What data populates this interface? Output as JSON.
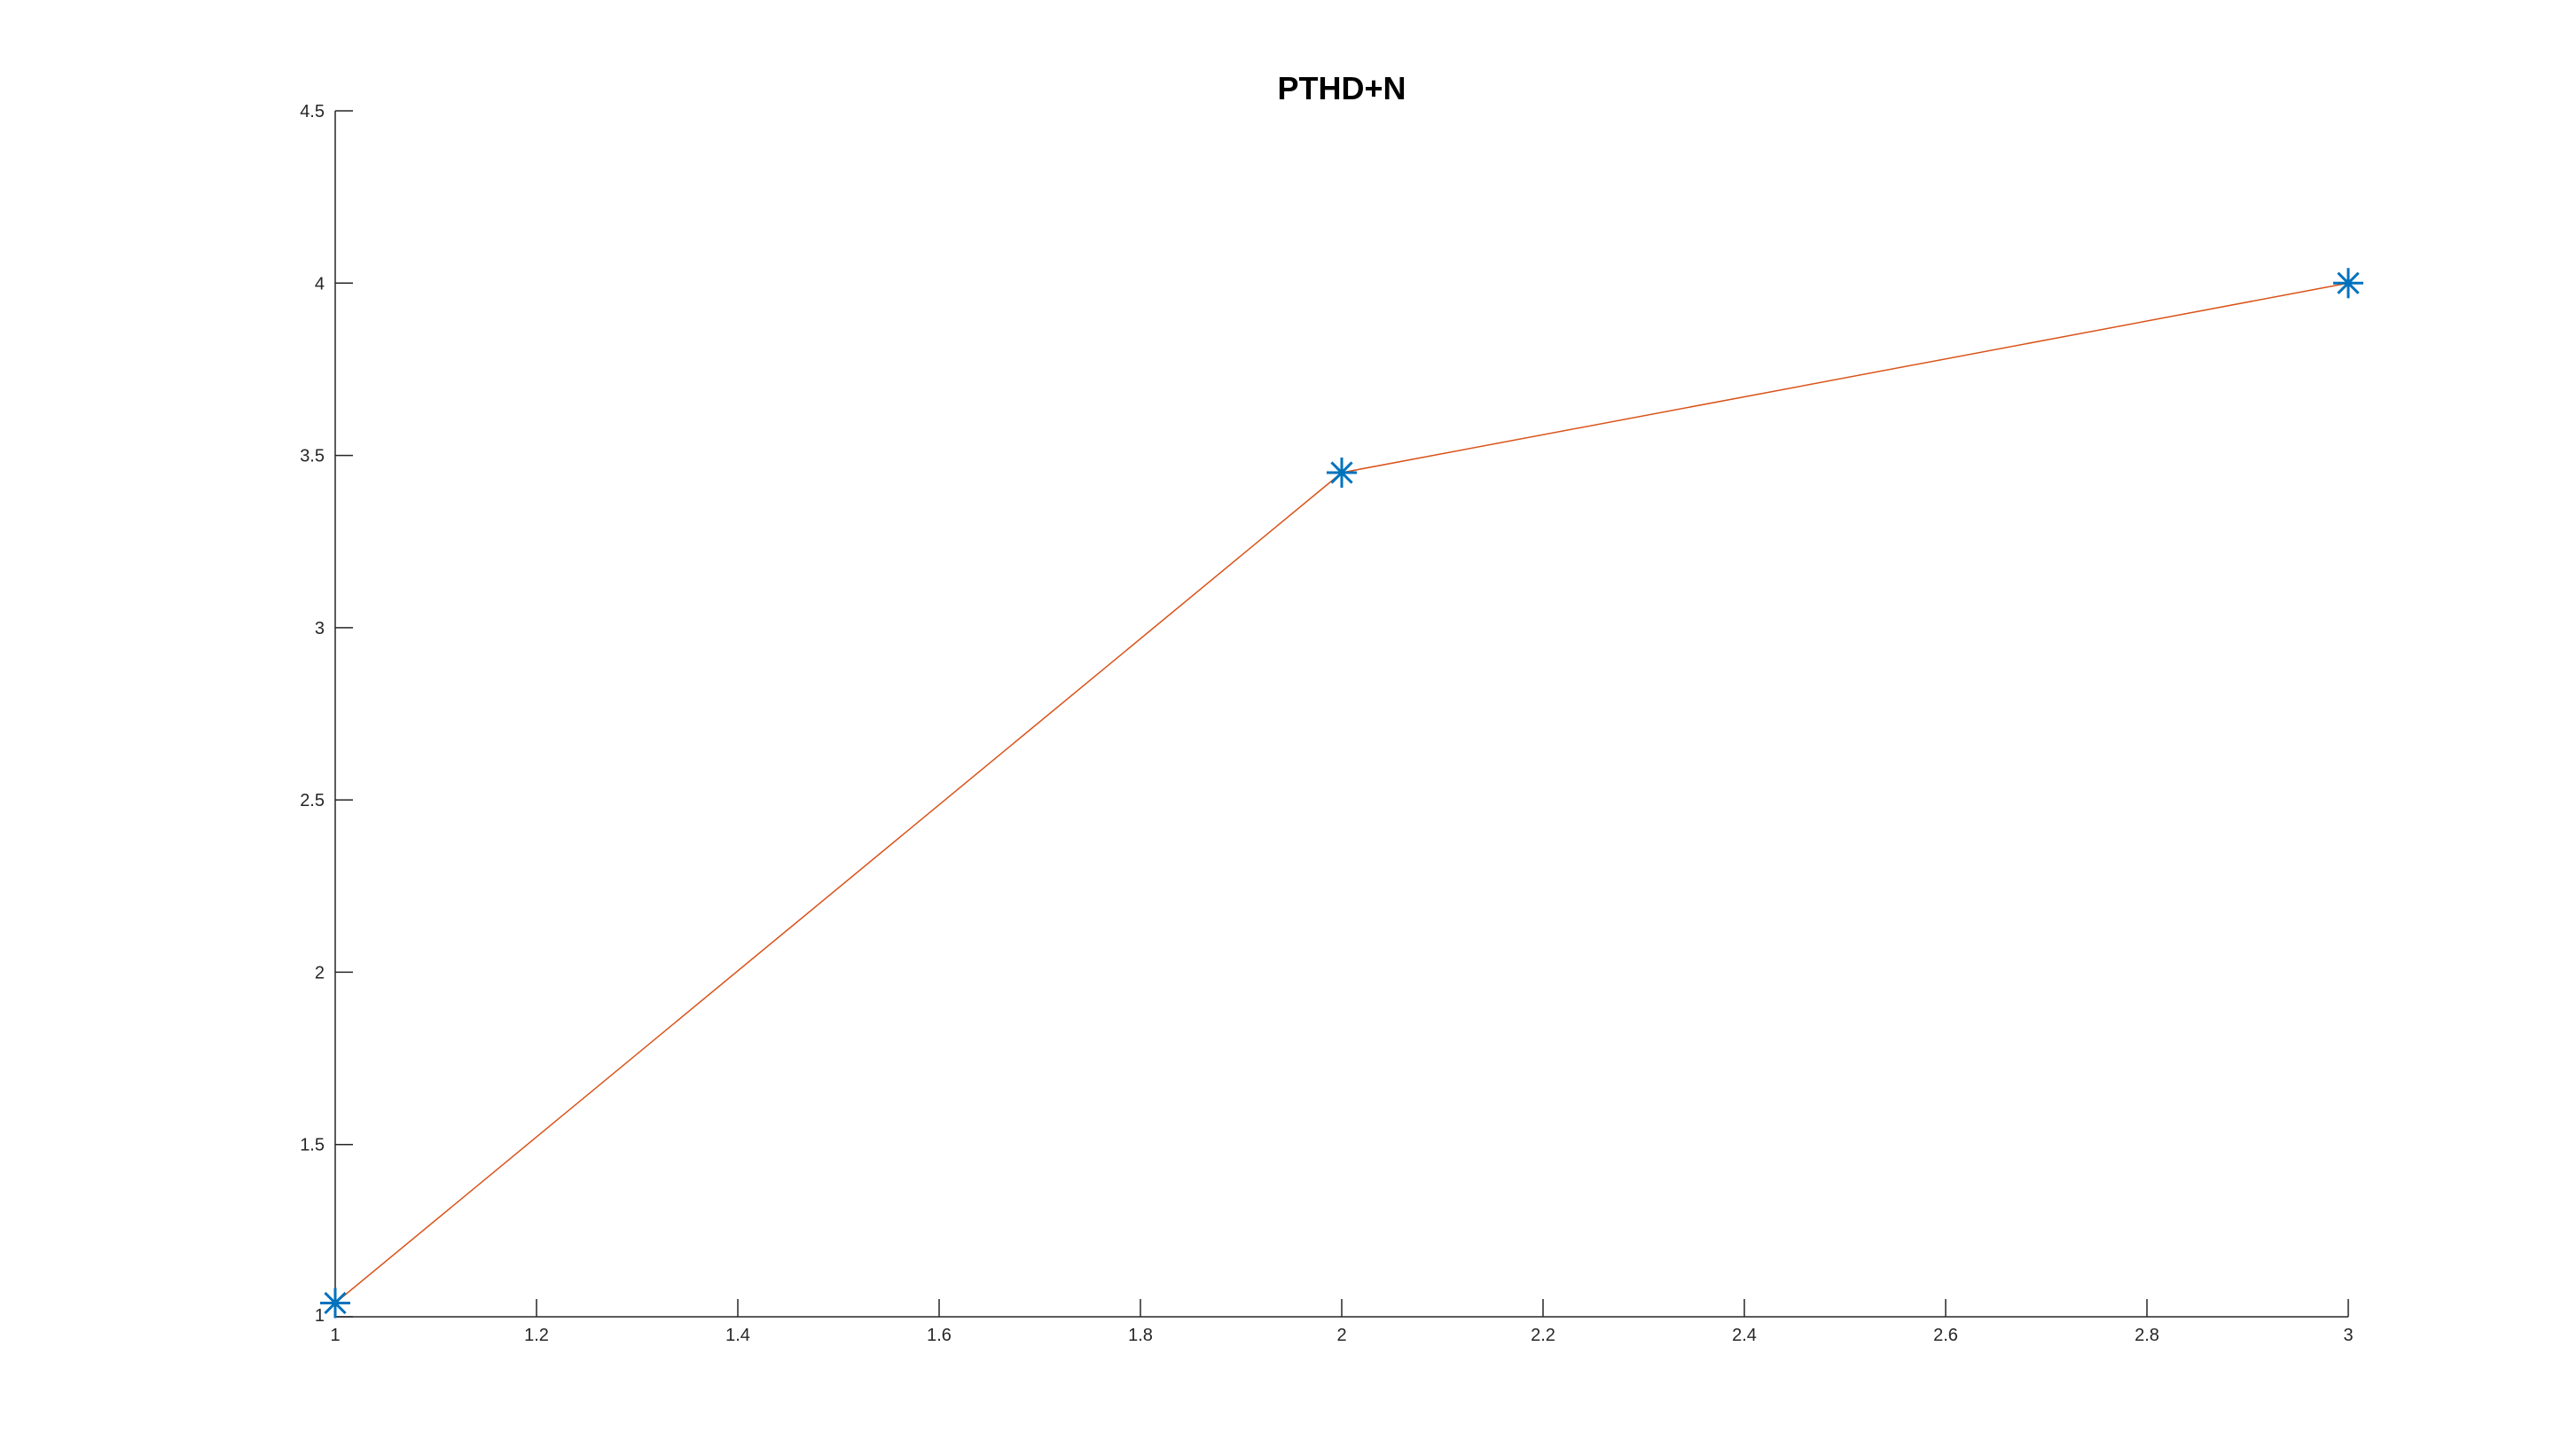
{
  "chart_data": {
    "type": "line",
    "title": "PTHD+N",
    "xlabel": "",
    "ylabel": "",
    "xlim": [
      1,
      3
    ],
    "ylim": [
      1,
      4.5
    ],
    "xticks": [
      1,
      1.2,
      1.4,
      1.6,
      1.8,
      2,
      2.2,
      2.4,
      2.6,
      2.8,
      3
    ],
    "xtick_labels": [
      "1",
      "1.2",
      "1.4",
      "1.6",
      "1.8",
      "2",
      "2.2",
      "2.4",
      "2.6",
      "2.8",
      "3"
    ],
    "yticks": [
      1,
      1.5,
      2,
      2.5,
      3,
      3.5,
      4,
      4.5
    ],
    "ytick_labels": [
      "1",
      "1.5",
      "2",
      "2.5",
      "3",
      "3.5",
      "4",
      "4.5"
    ],
    "grid": false,
    "legend": false,
    "series": [
      {
        "style": "line",
        "color": "#D95319",
        "x": [
          1,
          2,
          3
        ],
        "y": [
          1.04,
          3.45,
          4.0
        ]
      },
      {
        "style": "markers",
        "marker": "asterisk",
        "color": "#0072BD",
        "x": [
          1,
          2,
          3
        ],
        "y": [
          1.04,
          3.45,
          4.0
        ]
      }
    ]
  }
}
